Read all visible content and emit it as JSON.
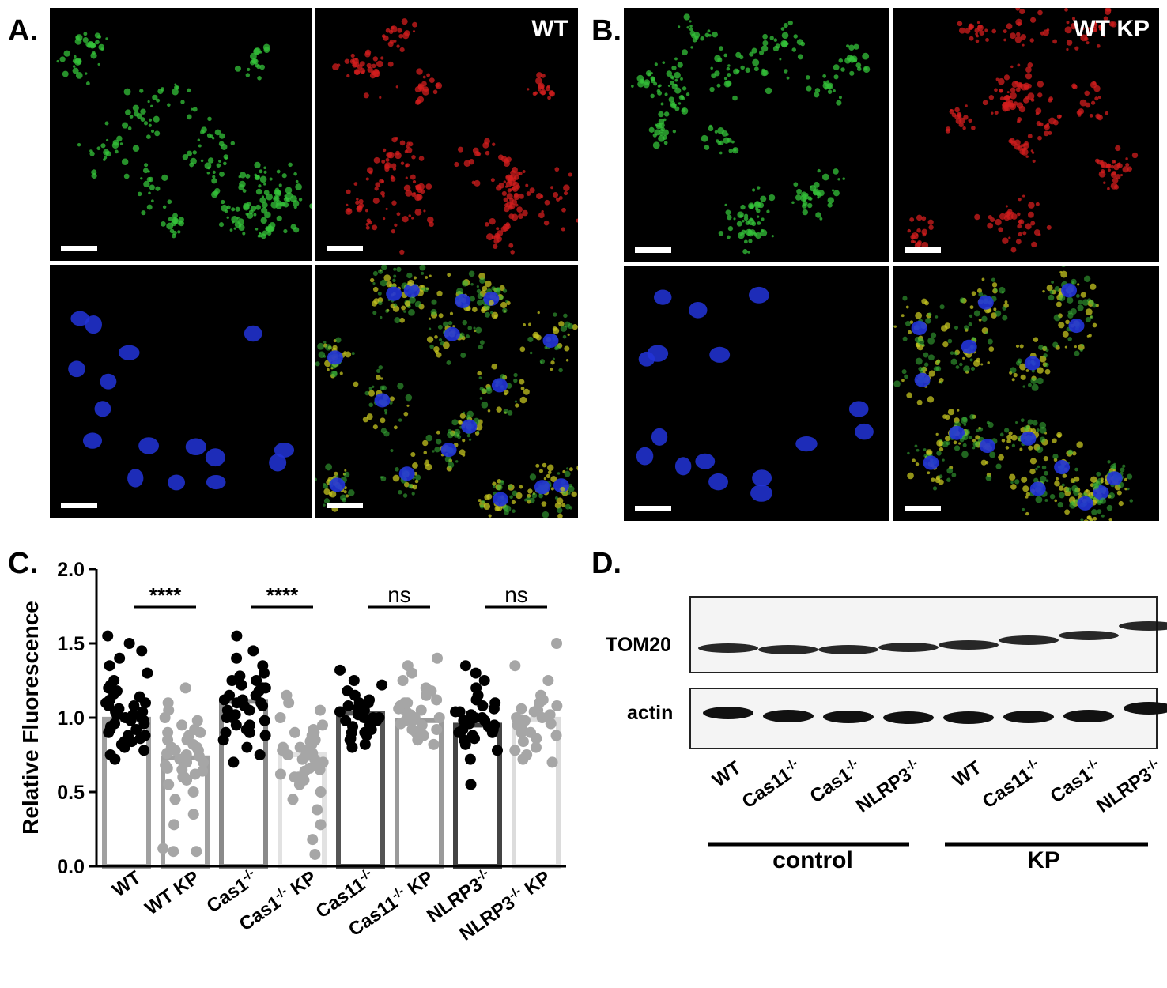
{
  "panels": {
    "A": {
      "letter": "A.",
      "condition_label": "WT",
      "channels": [
        "green",
        "red",
        "blue",
        "merge"
      ]
    },
    "B": {
      "letter": "B.",
      "condition_label": "WT KP",
      "channels": [
        "green",
        "red",
        "blue",
        "merge"
      ]
    },
    "C": {
      "letter": "C."
    },
    "D": {
      "letter": "D.",
      "row_labels": [
        "TOM20",
        "actin"
      ],
      "lanes": [
        "WT",
        "Cas11-/-",
        "Cas1-/-",
        "NLRP3-/-",
        "WT",
        "Cas11-/-",
        "Cas1-/-",
        "NLRP3-/-"
      ],
      "lane_labels": [
        {
          "base": "WT",
          "sup": ""
        },
        {
          "base": "Cas11",
          "sup": "-/-"
        },
        {
          "base": "Cas1",
          "sup": "-/-"
        },
        {
          "base": "NLRP3",
          "sup": "-/-"
        },
        {
          "base": "WT",
          "sup": ""
        },
        {
          "base": "Cas11",
          "sup": "-/-"
        },
        {
          "base": "Cas1",
          "sup": "-/-"
        },
        {
          "base": "NLRP3",
          "sup": "-/-"
        }
      ],
      "groups": [
        "control",
        "KP"
      ]
    }
  },
  "chart_data": {
    "type": "bar",
    "title": "",
    "ylabel": "Relative Fluorescence",
    "xlabel": "",
    "ylim": [
      0,
      2.0
    ],
    "yticks": [
      "0.0",
      "0.5",
      "1.0",
      "1.5",
      "2.0"
    ],
    "categories": [
      "WT",
      "WT KP",
      "Cas1-/-",
      "Cas1-/- KP",
      "Cas11-/-",
      "Cas11-/- KP",
      "NLRP3-/-",
      "NLRP3-/- KP"
    ],
    "category_labels": [
      {
        "pre": "WT",
        "sup": "",
        "post": ""
      },
      {
        "pre": "WT KP",
        "sup": "",
        "post": ""
      },
      {
        "pre": "Cas1",
        "sup": "-/-",
        "post": ""
      },
      {
        "pre": "Cas1",
        "sup": "-/-",
        "post": " KP"
      },
      {
        "pre": "Cas11",
        "sup": "-/-",
        "post": ""
      },
      {
        "pre": "Cas11",
        "sup": "-/-",
        "post": " KP"
      },
      {
        "pre": "NLRP3",
        "sup": "-/-",
        "post": ""
      },
      {
        "pre": "NLRP3",
        "sup": "-/-",
        "post": " KP"
      }
    ],
    "values": [
      0.99,
      0.73,
      1.11,
      0.75,
      1.03,
      0.98,
      0.95,
      0.99
    ],
    "point_colors": [
      "#000000",
      "#a6a6a6",
      "#000000",
      "#a6a6a6",
      "#000000",
      "#a6a6a6",
      "#000000",
      "#a6a6a6"
    ],
    "bar_colors": [
      "#a0a0a0",
      "#a0a0a0",
      "#8a8a8a",
      "#e2e2e2",
      "#555555",
      "#9a9a9a",
      "#444444",
      "#dcdcdc"
    ],
    "points": [
      [
        0.72,
        0.75,
        0.78,
        0.8,
        0.82,
        0.84,
        0.86,
        0.88,
        0.9,
        0.92,
        0.94,
        0.96,
        0.98,
        1.0,
        1.02,
        1.04,
        1.06,
        1.08,
        1.1,
        1.12,
        1.14,
        1.16,
        1.18,
        1.2,
        1.22,
        1.25,
        1.3,
        1.35,
        1.4,
        1.45,
        1.5,
        1.55,
        0.92,
        0.96,
        1.0,
        1.04,
        0.88,
        1.1,
        0.84,
        0.98,
        1.08,
        1.02
      ],
      [
        0.1,
        0.12,
        0.1,
        0.28,
        0.35,
        0.45,
        0.5,
        0.55,
        0.58,
        0.6,
        0.62,
        0.65,
        0.68,
        0.7,
        0.72,
        0.74,
        0.76,
        0.78,
        0.8,
        0.82,
        0.85,
        0.88,
        0.9,
        0.92,
        0.95,
        0.98,
        1.0,
        1.05,
        1.1,
        1.2,
        0.66,
        0.7,
        0.75,
        0.8,
        0.6,
        0.72,
        0.85,
        0.78,
        0.64,
        0.9
      ],
      [
        0.7,
        0.75,
        0.8,
        0.85,
        0.88,
        0.9,
        0.92,
        0.95,
        0.98,
        1.0,
        1.02,
        1.05,
        1.08,
        1.1,
        1.12,
        1.15,
        1.18,
        1.2,
        1.22,
        1.25,
        1.28,
        1.3,
        1.35,
        1.4,
        1.45,
        1.55,
        1.0,
        1.05,
        1.1,
        1.15,
        0.95,
        1.2,
        1.08,
        0.9,
        1.12,
        1.25
      ],
      [
        0.08,
        0.18,
        0.28,
        0.38,
        0.45,
        0.5,
        0.55,
        0.58,
        0.6,
        0.62,
        0.65,
        0.68,
        0.7,
        0.72,
        0.74,
        0.76,
        0.78,
        0.8,
        0.82,
        0.85,
        0.88,
        0.9,
        0.92,
        0.95,
        1.0,
        1.05,
        1.1,
        1.15,
        0.66,
        0.7,
        0.75,
        0.8,
        0.6,
        0.72,
        0.84,
        0.78,
        0.64,
        0.9
      ],
      [
        0.8,
        0.82,
        0.85,
        0.88,
        0.9,
        0.92,
        0.94,
        0.96,
        0.98,
        1.0,
        1.02,
        1.04,
        1.06,
        1.08,
        1.1,
        1.12,
        1.15,
        1.18,
        1.22,
        1.25,
        1.32,
        0.95,
        1.0,
        1.05,
        0.9,
        1.1,
        0.86,
        0.98,
        1.02,
        1.08,
        0.94,
        1.0
      ],
      [
        0.82,
        0.85,
        0.88,
        0.9,
        0.92,
        0.95,
        0.98,
        1.0,
        1.02,
        1.05,
        1.08,
        1.1,
        1.12,
        1.15,
        1.18,
        1.2,
        1.25,
        1.3,
        1.35,
        1.4,
        0.92,
        0.96,
        1.0,
        1.04,
        0.88,
        1.06,
        0.98,
        1.1
      ],
      [
        0.55,
        0.72,
        0.78,
        0.82,
        0.85,
        0.88,
        0.9,
        0.92,
        0.94,
        0.96,
        0.98,
        1.0,
        1.02,
        1.04,
        1.06,
        1.08,
        1.1,
        1.12,
        1.15,
        1.2,
        1.25,
        1.3,
        1.35,
        0.9,
        0.95,
        1.0,
        0.86,
        0.98,
        1.04,
        0.92
      ],
      [
        0.7,
        0.72,
        0.75,
        0.78,
        0.8,
        0.84,
        0.88,
        0.9,
        0.92,
        0.95,
        0.98,
        1.0,
        1.02,
        1.05,
        1.08,
        1.1,
        1.12,
        1.15,
        1.25,
        1.35,
        1.5,
        0.96,
        1.0,
        1.04,
        0.9,
        1.06,
        0.86,
        0.98
      ]
    ],
    "comparisons": [
      {
        "pair": [
          0,
          1
        ],
        "label": "****"
      },
      {
        "pair": [
          2,
          3
        ],
        "label": "****"
      },
      {
        "pair": [
          4,
          5
        ],
        "label": "ns"
      },
      {
        "pair": [
          6,
          7
        ],
        "label": "ns"
      }
    ],
    "grid": false,
    "legend": "none"
  }
}
